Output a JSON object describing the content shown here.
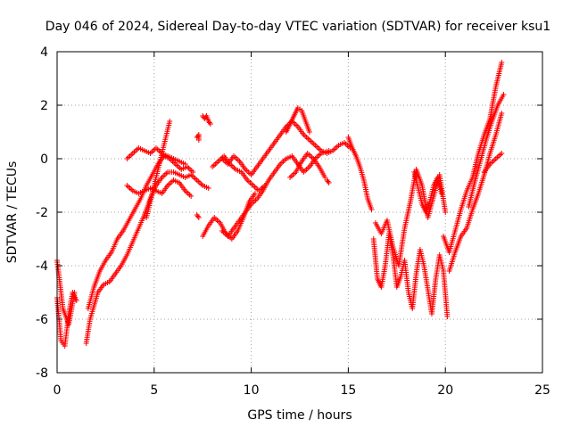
{
  "chart_data": {
    "type": "scatter",
    "title": "Day 046 of 2024, Sidereal Day-to-day VTEC variation (SDTVAR) for receiver ksu1",
    "xlabel": "GPS time / hours",
    "ylabel": "SDTVAR / TECUs",
    "xlim": [
      0,
      25
    ],
    "ylim": [
      -8,
      4
    ],
    "xticks": [
      0,
      5,
      10,
      15,
      20,
      25
    ],
    "yticks": [
      -8,
      -6,
      -4,
      -2,
      0,
      2,
      4
    ],
    "grid": true,
    "marker": "plus",
    "color": "#ff0000",
    "series": [
      {
        "x": [
          0.0,
          0.2,
          0.4,
          0.6,
          0.8,
          1.0
        ],
        "y": [
          -5.2,
          -6.8,
          -7.0,
          -5.8,
          -5.0,
          -5.3
        ]
      },
      {
        "x": [
          0.0,
          0.3,
          0.6,
          0.9
        ],
        "y": [
          -3.8,
          -5.6,
          -6.2,
          -5.0
        ]
      },
      {
        "x": [
          1.5,
          1.7,
          1.9,
          2.1,
          2.4,
          2.7,
          3.0,
          3.3,
          3.6,
          3.9,
          4.2,
          4.5,
          4.8,
          5.1,
          5.4,
          5.7,
          6.0,
          6.3,
          6.6,
          6.9,
          7.2,
          7.5,
          7.8
        ],
        "y": [
          -6.9,
          -6.0,
          -5.5,
          -5.0,
          -4.7,
          -4.6,
          -4.3,
          -4.0,
          -3.6,
          -3.1,
          -2.6,
          -2.1,
          -1.5,
          -1.0,
          -0.7,
          -0.5,
          -0.5,
          -0.6,
          -0.7,
          -0.6,
          -0.8,
          -1.0,
          -1.1
        ]
      },
      {
        "x": [
          1.6,
          1.9,
          2.2,
          2.5,
          2.8,
          3.1,
          3.4,
          3.7,
          4.0,
          4.3,
          4.6,
          4.9,
          5.2,
          5.5,
          5.8,
          6.1,
          6.4,
          6.7,
          7.0
        ],
        "y": [
          -5.6,
          -4.8,
          -4.2,
          -3.8,
          -3.5,
          -3.0,
          -2.7,
          -2.3,
          -1.9,
          -1.5,
          -1.0,
          -0.6,
          -0.2,
          0.1,
          0.0,
          -0.2,
          -0.4,
          -0.3,
          -0.5
        ]
      },
      {
        "x": [
          3.6,
          3.9,
          4.2,
          4.5,
          4.8,
          5.1,
          5.4,
          5.7,
          6.0,
          6.3,
          6.6,
          6.9
        ],
        "y": [
          -1.0,
          -1.2,
          -1.3,
          -1.2,
          -1.1,
          -1.2,
          -1.3,
          -1.0,
          -0.8,
          -0.9,
          -1.2,
          -1.4
        ]
      },
      {
        "x": [
          3.6,
          3.9,
          4.2,
          4.5,
          4.8,
          5.1,
          5.4,
          5.7,
          6.0,
          6.3,
          6.6
        ],
        "y": [
          0.0,
          0.2,
          0.4,
          0.3,
          0.2,
          0.4,
          0.2,
          0.1,
          0.0,
          -0.1,
          -0.2
        ]
      },
      {
        "x": [
          4.6,
          4.8,
          5.0,
          5.2,
          5.4,
          5.6,
          5.8
        ],
        "y": [
          -2.2,
          -1.6,
          -1.0,
          -0.4,
          0.2,
          0.8,
          1.4
        ]
      },
      {
        "x": [
          7.5,
          7.6,
          7.7,
          7.8,
          7.9
        ],
        "y": [
          1.6,
          1.5,
          1.6,
          1.4,
          1.3
        ]
      },
      {
        "x": [
          7.2,
          7.3,
          7.3
        ],
        "y": [
          0.8,
          0.9,
          0.7
        ]
      },
      {
        "x": [
          7.2,
          7.3
        ],
        "y": [
          -2.1,
          -2.2
        ]
      },
      {
        "x": [
          7.5,
          7.8,
          8.1,
          8.4,
          8.7,
          9.0,
          9.3,
          9.6,
          9.9,
          10.2
        ],
        "y": [
          -2.9,
          -2.5,
          -2.2,
          -2.4,
          -2.8,
          -3.0,
          -2.7,
          -2.2,
          -1.6,
          -1.3
        ]
      },
      {
        "x": [
          8.5,
          8.8,
          9.1,
          9.4,
          9.7,
          10.0,
          10.3,
          10.6,
          10.9,
          11.2,
          11.5,
          11.8,
          12.1,
          12.4,
          12.7,
          13.0,
          13.3,
          13.6,
          14.0
        ],
        "y": [
          -2.7,
          -2.9,
          -2.6,
          -2.3,
          -2.0,
          -1.7,
          -1.5,
          -1.2,
          -0.8,
          -0.5,
          -0.2,
          0.0,
          0.1,
          -0.2,
          -0.5,
          -0.3,
          0.0,
          0.2,
          0.3
        ]
      },
      {
        "x": [
          8.0,
          8.3,
          8.6,
          8.9,
          9.2,
          9.5,
          9.8,
          10.1,
          10.4,
          10.7
        ],
        "y": [
          -0.3,
          -0.1,
          0.1,
          -0.2,
          -0.4,
          -0.5,
          -0.8,
          -1.0,
          -1.2,
          -1.0
        ]
      },
      {
        "x": [
          8.5,
          8.8,
          9.1,
          9.4,
          9.7,
          10.0,
          10.3,
          10.6,
          10.9,
          11.2,
          11.5,
          11.8,
          12.1,
          12.4,
          12.7,
          13.0,
          13.3,
          13.6,
          13.9,
          14.2,
          14.5,
          14.8,
          15.1
        ],
        "y": [
          0.0,
          -0.2,
          0.1,
          -0.1,
          -0.4,
          -0.6,
          -0.3,
          0.0,
          0.3,
          0.6,
          0.9,
          1.2,
          1.4,
          1.2,
          0.9,
          0.7,
          0.5,
          0.3,
          0.2,
          0.3,
          0.5,
          0.6,
          0.4
        ]
      },
      {
        "x": [
          11.8,
          12.0,
          12.2,
          12.4,
          12.6,
          12.8,
          13.0
        ],
        "y": [
          1.0,
          1.3,
          1.6,
          1.9,
          1.8,
          1.4,
          1.0
        ]
      },
      {
        "x": [
          12.0,
          12.3,
          12.6,
          12.9,
          13.2,
          13.5,
          13.8
        ],
        "y": [
          -0.7,
          -0.5,
          -0.1,
          0.2,
          0.0,
          -0.3,
          -0.7
        ]
      },
      {
        "x": [
          13.9,
          14.0
        ],
        "y": [
          -0.8,
          -0.9
        ]
      },
      {
        "x": [
          15.0,
          15.2,
          15.4,
          15.6,
          15.8,
          16.0,
          16.2
        ],
        "y": [
          0.8,
          0.4,
          0.1,
          -0.3,
          -0.8,
          -1.5,
          -1.9
        ]
      },
      {
        "x": [
          16.3,
          16.5,
          16.7,
          16.9,
          17.1,
          17.3,
          17.5,
          17.7,
          17.9,
          18.1,
          18.3,
          18.5,
          18.7,
          18.9,
          19.1,
          19.3,
          19.5,
          19.7,
          19.9,
          20.1
        ],
        "y": [
          -3.0,
          -4.5,
          -4.8,
          -4.0,
          -2.8,
          -3.6,
          -4.8,
          -4.4,
          -3.8,
          -5.0,
          -5.6,
          -4.3,
          -3.4,
          -4.0,
          -4.9,
          -5.8,
          -4.5,
          -3.6,
          -4.2,
          -5.9
        ]
      },
      {
        "x": [
          16.4,
          16.7,
          17.0,
          17.3,
          17.6,
          17.9,
          18.2,
          18.5,
          18.8,
          19.1,
          19.4,
          19.7,
          20.0
        ],
        "y": [
          -2.4,
          -2.8,
          -2.3,
          -3.3,
          -4.0,
          -2.6,
          -1.6,
          -0.4,
          -1.0,
          -2.2,
          -1.4,
          -0.6,
          -2.0
        ]
      },
      {
        "x": [
          18.4,
          18.6,
          18.8,
          19.0,
          19.2,
          19.4,
          19.6,
          19.8
        ],
        "y": [
          -0.5,
          -1.1,
          -1.7,
          -2.0,
          -1.6,
          -1.0,
          -0.7,
          -1.3
        ]
      },
      {
        "x": [
          19.9,
          20.2,
          20.5,
          20.8,
          21.1,
          21.4,
          21.7,
          22.0,
          22.3,
          22.6,
          22.9
        ],
        "y": [
          -2.9,
          -3.5,
          -2.7,
          -1.9,
          -1.2,
          -0.7,
          0.2,
          0.9,
          1.5,
          2.7,
          3.6
        ]
      },
      {
        "x": [
          20.2,
          20.5,
          20.8,
          21.1,
          21.4,
          21.7,
          22.0,
          22.3,
          22.6,
          22.9
        ],
        "y": [
          -4.2,
          -3.5,
          -2.9,
          -2.6,
          -1.9,
          -1.3,
          -0.6,
          0.2,
          0.9,
          1.7
        ]
      },
      {
        "x": [
          21.2,
          21.5,
          21.8,
          22.1,
          22.4,
          22.7,
          23.0
        ],
        "y": [
          -1.8,
          -0.9,
          -0.1,
          0.7,
          1.4,
          2.0,
          2.4
        ]
      },
      {
        "x": [
          22.0,
          22.3,
          22.6,
          22.9
        ],
        "y": [
          -0.5,
          -0.2,
          0.0,
          0.2
        ]
      }
    ]
  }
}
